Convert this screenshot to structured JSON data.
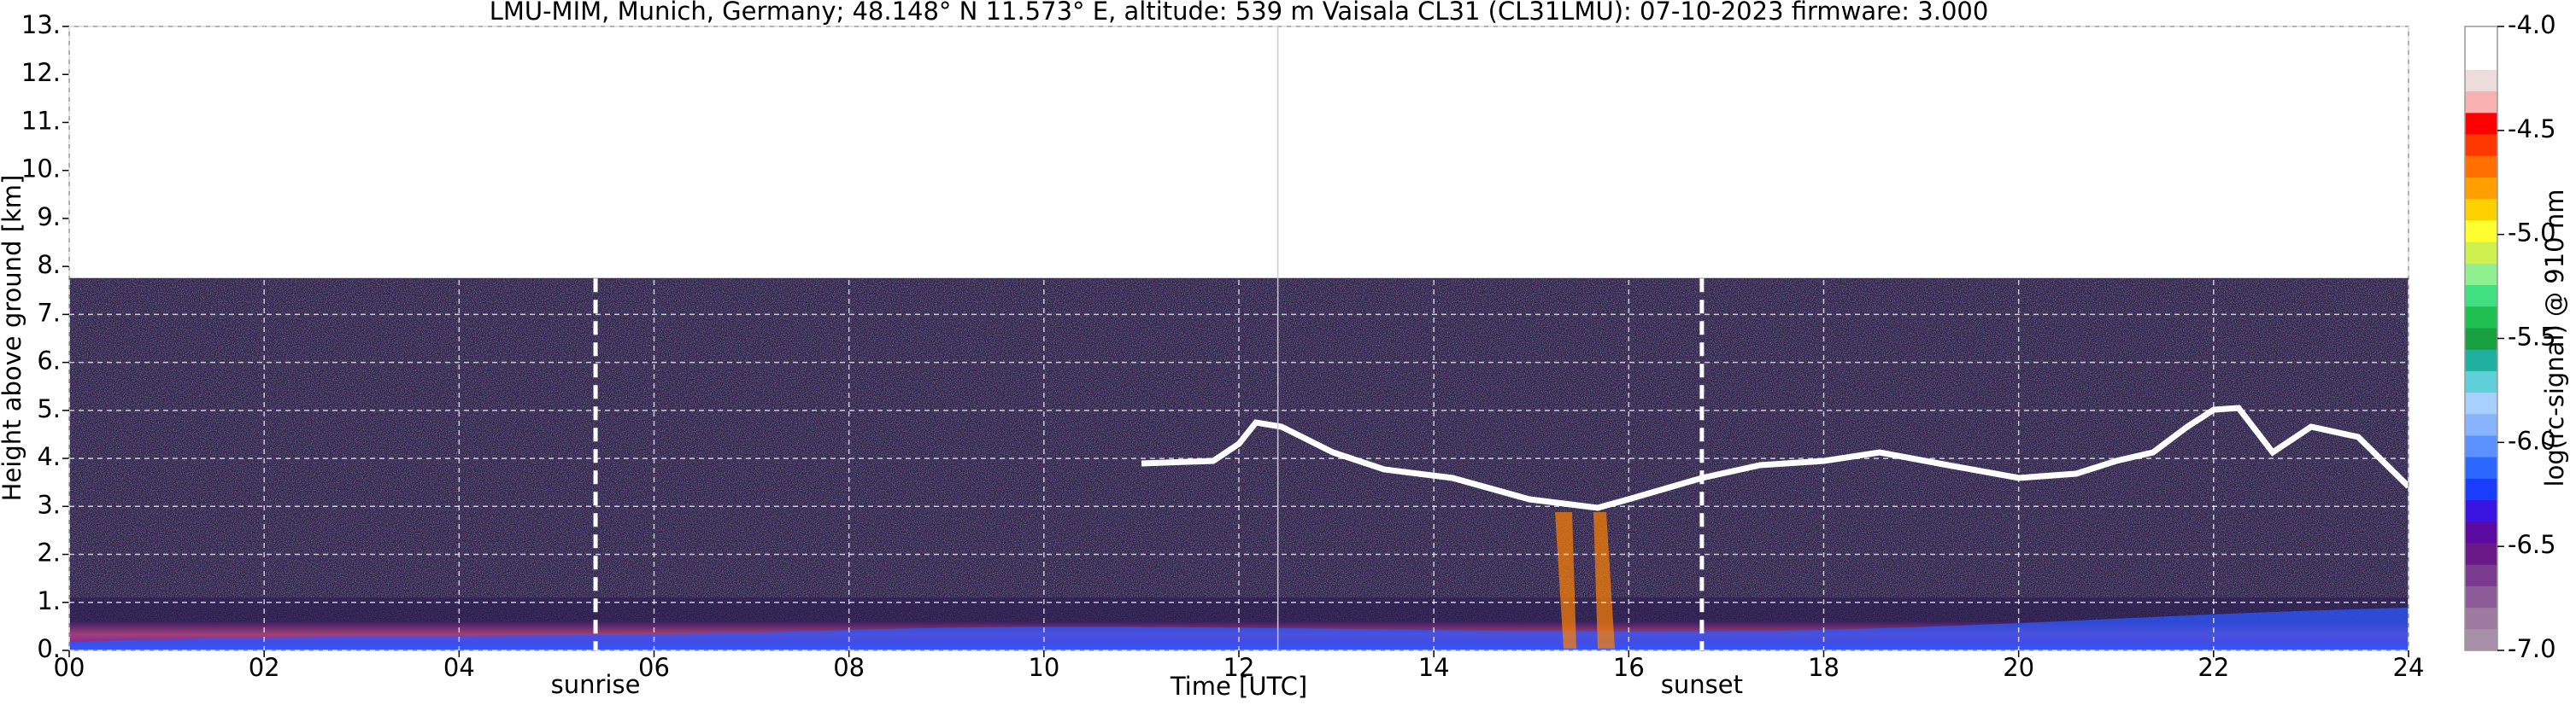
{
  "chart_data": {
    "type": "heatmap",
    "title": "LMU-MIM, Munich, Germany; 48.148° N 11.573° E, altitude: 539 m    Vaisala CL31 (CL31LMU): 07-10-2023    firmware: 3.000",
    "xlabel": "Time [UTC]",
    "ylabel": "Height above ground [km]",
    "xlim": [
      0,
      24
    ],
    "xticks": [
      {
        "value": 0,
        "label": "00"
      },
      {
        "value": 2,
        "label": "02"
      },
      {
        "value": 4,
        "label": "04"
      },
      {
        "value": 6,
        "label": "06"
      },
      {
        "value": 8,
        "label": "08"
      },
      10,
      12,
      14,
      16,
      18,
      20,
      22,
      24
    ],
    "ylim": [
      0,
      13
    ],
    "yticks": [
      {
        "value": 0,
        "label": "0."
      },
      {
        "value": 1,
        "label": "1."
      },
      {
        "value": 2,
        "label": "2."
      },
      {
        "value": 3,
        "label": "3."
      },
      {
        "value": 4,
        "label": "4."
      },
      {
        "value": 5,
        "label": "5."
      },
      {
        "value": 6,
        "label": "6."
      },
      {
        "value": 7,
        "label": "7."
      },
      {
        "value": 8,
        "label": "8."
      },
      {
        "value": 9,
        "label": "9."
      },
      {
        "value": 10,
        "label": "10."
      },
      {
        "value": 11,
        "label": "11."
      },
      {
        "value": 12,
        "label": "12."
      },
      {
        "value": 13,
        "label": "13."
      }
    ],
    "grid": true,
    "data_top": 7.75,
    "markers": [
      {
        "label": "sunrise",
        "x": 5.4
      },
      {
        "label": "sunset",
        "x": 16.75
      }
    ],
    "vline": 12.4,
    "colorbar": {
      "label": "log(rc-signal) @ 910 nm",
      "lim": [
        -7,
        -4
      ],
      "ticks": [
        {
          "value": -4,
          "label": "-4.0"
        },
        {
          "value": -4.5,
          "label": "-4.5"
        },
        {
          "value": -5,
          "label": "-5.0"
        },
        {
          "value": -5.5,
          "label": "-5.5"
        },
        {
          "value": -6,
          "label": "-6.0"
        },
        {
          "value": -6.5,
          "label": "-6.5"
        },
        {
          "value": -7,
          "label": "-7.0"
        }
      ],
      "colors": [
        "#a890a8",
        "#9e7aa0",
        "#8c5c98",
        "#7a3a90",
        "#6a1a88",
        "#5a0aa0",
        "#3a14e0",
        "#1a3cff",
        "#2a66ff",
        "#5a90ff",
        "#88b4ff",
        "#a8d0ff",
        "#60d0d8",
        "#20b0a0",
        "#18a040",
        "#20c050",
        "#40e080",
        "#90f090",
        "#d0f050",
        "#ffff30",
        "#ffd000",
        "#ffa000",
        "#ff7000",
        "#ff3800",
        "#ff0000",
        "#f8b0b0",
        "#ecdcdc",
        "#ffffff",
        "#ffffff"
      ]
    }
  }
}
